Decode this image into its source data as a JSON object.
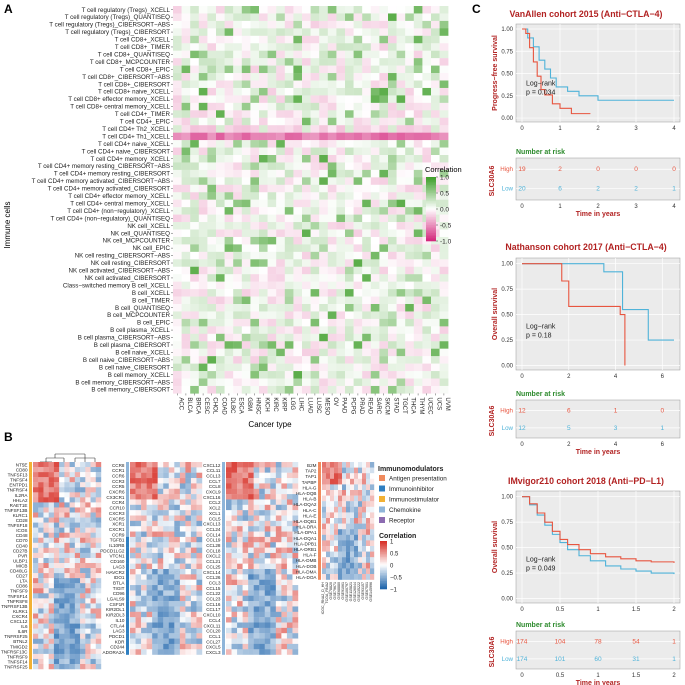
{
  "panels": {
    "A": "A",
    "B": "B",
    "C": "C"
  },
  "colors": {
    "high": "#e8553f",
    "low": "#4fb3d9",
    "title_red": "#b22222",
    "risk_green": "#2e8b2e",
    "risk_red": "#b22222",
    "heat_pos": "#3f9f2a",
    "heat_neg": "#d4287d"
  },
  "panel_a": {
    "ylabel": "Immune cells",
    "xlabel": "Cancer type",
    "legend_title": "Correlation",
    "legend_ticks": [
      "1.0",
      "0.5",
      "0.0",
      "-0.5",
      "-1.0"
    ],
    "cancers": [
      "ACC",
      "BLCA",
      "BRCA",
      "CESC",
      "CHOL",
      "COAD",
      "DLBC",
      "ESCA",
      "GBM",
      "HNSC",
      "KICH",
      "KIRC",
      "KIRP",
      "LGG",
      "LIHC",
      "LUAD",
      "LUSC",
      "MESO",
      "OV",
      "PAAD",
      "PCPG",
      "PRAD",
      "READ",
      "SARC",
      "SKCM",
      "STAD",
      "TGCT",
      "THCA",
      "THYM",
      "UCEC",
      "UCS",
      "UVM"
    ],
    "cells": [
      "T cell regulatory (Tregs)_XCELL",
      "T cell regulatory (Tregs)_QUANTISEQ",
      "T cell regulatory (Tregs)_CIBERSORT−ABS",
      "T cell regulatory (Tregs)_CIBERSORT",
      "T cell CD8+_XCELL",
      "T cell CD8+_TIMER",
      "T cell CD8+_QUANTISEQ",
      "T cell CD8+_MCPCOUNTER",
      "T cell CD8+_EPIC",
      "T cell CD8+_CIBERSORT−ABS",
      "T cell CD8+_CIBERSORT",
      "T cell CD8+ naive_XCELL",
      "T cell CD8+ effector memory_XCELL",
      "T cell CD8+ central memory_XCELL",
      "T cell CD4+_TIMER",
      "T cell CD4+_EPIC",
      "T cell CD4+ Th2_XCELL",
      "T cell CD4+ Th1_XCELL",
      "T cell CD4+ naive_XCELL",
      "T cell CD4+ naive_CIBERSORT",
      "T cell CD4+ memory_XCELL",
      "T cell CD4+ memory resting_CIBERSORT−ABS",
      "T cell CD4+ memory resting_CIBERSORT",
      "T cell CD4+ memory activated_CIBERSORT−ABS",
      "T cell CD4+ memory activated_CIBERSORT",
      "T cell CD4+ effector memory_XCELL",
      "T cell CD4+ central memory_XCELL",
      "T cell CD4+ (non−regulatory)_XCELL",
      "T cell CD4+ (non−regulatory)_QUANTISEQ",
      "NK cell_XCELL",
      "NK cell_QUANTISEQ",
      "NK cell_MCPCOUNTER",
      "NK cell_EPIC",
      "NK cell resting_CIBERSORT−ABS",
      "NK cell resting_CIBERSORT",
      "NK cell activated_CIBERSORT−ABS",
      "NK cell activated_CIBERSORT",
      "Class−switched memory B cell_XCELL",
      "B cell_XCELL",
      "B cell_TIMER",
      "B cell_QUANTISEQ",
      "B cell_MCPCOUNTER",
      "B cell_EPIC",
      "B cell plasma_XCELL",
      "B cell plasma_CIBERSORT−ABS",
      "B cell plasma_CIBERSORT",
      "B cell naive_XCELL",
      "B cell naive_CIBERSORT−ABS",
      "B cell naive_CIBERSORT",
      "B cell memory_XCELL",
      "B cell memory_CIBERSORT−ABS",
      "B cell memory_CIBERSORT"
    ]
  },
  "panel_b": {
    "legend_title": "Immunomodulators",
    "categories": [
      {
        "name": "Antigen presentation",
        "color": "#f08a5d"
      },
      {
        "name": "Immunoinhibitor",
        "color": "#2f7fc1"
      },
      {
        "name": "Immunostimulator",
        "color": "#f2b134"
      },
      {
        "name": "Chemokine",
        "color": "#8fb5d9"
      },
      {
        "name": "Receptor",
        "color": "#8c6bb1"
      }
    ],
    "corr_title": "Correlation",
    "corr_ticks": [
      "1",
      "0.5",
      "0",
      "−0.5",
      "−1"
    ],
    "genes_stim": [
      "NT5E",
      "CD80",
      "TNFSF13",
      "TNFSF4",
      "ENTPD1",
      "TNFRSF4",
      "IL2RA",
      "HHLA2",
      "RAET1E",
      "TNFSF13B",
      "KLRC1",
      "CD28",
      "TNFSF18",
      "ICOS",
      "CD48",
      "CD70",
      "CD40",
      "CD27B",
      "PVR",
      "ULBP1",
      "MICB",
      "CD40LG",
      "CD27",
      "LTA",
      "CD86",
      "TNFSF9",
      "TNFSF14",
      "TNFRSF8",
      "TNFRSF13B",
      "KLRK1",
      "CXCR4",
      "CXCL12",
      "IL6",
      "IL6R",
      "TNFRSF25",
      "BTNL2",
      "TMIGD2",
      "TNFRSF13C",
      "TNFRSF9",
      "TNFSF14",
      "TNFRSF25"
    ],
    "genes_mid1": [
      "CCR8",
      "CCR1",
      "CCR6",
      "CCR3",
      "CCR5",
      "CXCR6",
      "CX3CR1",
      "CCR4",
      "CCR10",
      "CXCR3",
      "CXCR5",
      "XCR1",
      "CXCR1",
      "CCR9",
      "TGFB1",
      "IL10RB",
      "PDCD1LG2",
      "VTCN1",
      "CD160",
      "LAG3",
      "HAVCR2",
      "IDO1",
      "BTLA",
      "TIGIT",
      "CD96",
      "LGALS9",
      "CSF1R",
      "KIR2DL1",
      "KIR2DL3",
      "IL10",
      "CTLA4",
      "LAG3",
      "PDCD1",
      "KDR",
      "CD244",
      "ADORA2A"
    ],
    "genes_mid2": [
      "CXCL12",
      "CCL11",
      "CCL13",
      "CCL7",
      "CCL8",
      "CXCL9",
      "CXCL16",
      "CCL2",
      "XCL2",
      "XCL1",
      "CCL5",
      "CXCL13",
      "CCL24",
      "CCL14",
      "CCL19",
      "CCL28",
      "CCL18",
      "CXCL2",
      "CCL21",
      "CCL25",
      "CXCL14",
      "CCL26",
      "CCL3",
      "CCL15",
      "CCL22",
      "CCL23",
      "CCL16",
      "CCL17",
      "CXCL10",
      "CCL4",
      "CXCL11",
      "CCL20",
      "CCL1",
      "CCL27",
      "CXCL5",
      "CXCL3"
    ],
    "genes_mhc": [
      "B2M",
      "TAP2",
      "TAP1",
      "TAPBP",
      "HLA-G",
      "HLA-DQB",
      "HLA-B",
      "HLA-DQA2",
      "HLA-C",
      "HLA-E",
      "HLA-DQB1",
      "HLA-DRA",
      "HLA-DPA1",
      "HLA-DQA1",
      "HLA-DPB1",
      "HLA-DRB1",
      "HLA-F",
      "HLA-DMB",
      "HLA-DOB",
      "HLA-DMA",
      "HLA-DOA"
    ],
    "col_labels": [
      "ICGC_RNA2_D_HH",
      "TCGA_RNA2",
      "GSE78820",
      "GSE79671",
      "GSE68880",
      "GSE91061",
      "GSE100797",
      "GSE115821",
      "GSE126044",
      "GSE135222",
      "GSE93157",
      "GSE67501",
      "GSE145996"
    ]
  },
  "panel_c": {
    "plots": [
      {
        "title": "VanAllen cohort 2015 (Anti−CTLA−4)",
        "ylabel": "Progress−free survival",
        "test_label": "Log−rank",
        "p_label": "p = 0.034",
        "xlim": [
          0,
          4
        ],
        "xticks": [
          "0",
          "1",
          "2",
          "3",
          "4"
        ],
        "yticks": [
          "0.00",
          "0.25",
          "0.50",
          "0.75",
          "1.00"
        ],
        "high_curve": [
          [
            0,
            1.0
          ],
          [
            0.1,
            0.95
          ],
          [
            0.2,
            0.79
          ],
          [
            0.3,
            0.63
          ],
          [
            0.4,
            0.47
          ],
          [
            0.5,
            0.32
          ],
          [
            0.6,
            0.26
          ],
          [
            0.8,
            0.16
          ],
          [
            1.0,
            0.11
          ],
          [
            1.3,
            0.05
          ],
          [
            1.8,
            0.05
          ]
        ],
        "low_curve": [
          [
            0,
            1.0
          ],
          [
            0.15,
            0.9
          ],
          [
            0.3,
            0.8
          ],
          [
            0.45,
            0.65
          ],
          [
            0.6,
            0.55
          ],
          [
            0.75,
            0.45
          ],
          [
            0.9,
            0.35
          ],
          [
            1.2,
            0.3
          ],
          [
            1.5,
            0.25
          ],
          [
            2.0,
            0.2
          ],
          [
            4.0,
            0.2
          ]
        ],
        "risk_title": "Number at risk",
        "risk_ylabel": "SLC30A6",
        "high_label": "High",
        "low_label": "Low",
        "risk_high": [
          "19",
          "2",
          "0",
          "0",
          "0"
        ],
        "risk_low": [
          "20",
          "6",
          "2",
          "2",
          "1"
        ],
        "risk_ticks": [
          "0",
          "1",
          "2",
          "3",
          "4"
        ],
        "xlabel": "Time in years"
      },
      {
        "title": "Nathanson cohort 2017 (Anti−CTLA−4)",
        "ylabel": "Overall survival",
        "test_label": "Log−rank",
        "p_label": "p = 0.18",
        "xlim": [
          0,
          6.5
        ],
        "xticks": [
          "0",
          "2",
          "4",
          "6"
        ],
        "yticks": [
          "0.00",
          "0.25",
          "0.50",
          "0.75",
          "1.00"
        ],
        "high_curve": [
          [
            0,
            1.0
          ],
          [
            1.7,
            1.0
          ],
          [
            1.7,
            0.83
          ],
          [
            2.0,
            0.83
          ],
          [
            2.0,
            0.58
          ],
          [
            4.2,
            0.58
          ],
          [
            4.2,
            0.5
          ],
          [
            4.4,
            0.5
          ],
          [
            4.4,
            0.0
          ]
        ],
        "low_curve": [
          [
            0,
            1.0
          ],
          [
            3.5,
            1.0
          ],
          [
            3.5,
            0.92
          ],
          [
            4.3,
            0.92
          ],
          [
            4.3,
            0.55
          ],
          [
            5.4,
            0.55
          ],
          [
            5.4,
            0.25
          ],
          [
            6.5,
            0.25
          ]
        ],
        "risk_title": "Number at risk",
        "risk_ylabel": "SLC30A6",
        "high_label": "High",
        "low_label": "Low",
        "risk_high": [
          "12",
          "6",
          "1",
          "0"
        ],
        "risk_low": [
          "12",
          "5",
          "3",
          "1"
        ],
        "risk_ticks": [
          "0",
          "2",
          "4",
          "6"
        ],
        "xlabel": "Time in years"
      },
      {
        "title": "IMvigor210 cohort 2018 (Anti−PD−L1)",
        "ylabel": "Overall survival",
        "test_label": "Log−rank",
        "p_label": "p = 0.049",
        "xlim": [
          0,
          2
        ],
        "xticks": [
          "0",
          "0.5",
          "1",
          "1.5",
          "2"
        ],
        "yticks": [
          "0.00",
          "0.25",
          "0.50",
          "0.75",
          "1.00"
        ],
        "high_curve": [
          [
            0,
            1.0
          ],
          [
            0.1,
            0.93
          ],
          [
            0.2,
            0.84
          ],
          [
            0.3,
            0.75
          ],
          [
            0.4,
            0.66
          ],
          [
            0.5,
            0.58
          ],
          [
            0.6,
            0.53
          ],
          [
            0.75,
            0.48
          ],
          [
            0.9,
            0.44
          ],
          [
            1.1,
            0.41
          ],
          [
            1.3,
            0.39
          ],
          [
            1.5,
            0.37
          ],
          [
            1.7,
            0.36
          ],
          [
            2.0,
            0.35
          ]
        ],
        "low_curve": [
          [
            0,
            1.0
          ],
          [
            0.1,
            0.92
          ],
          [
            0.2,
            0.82
          ],
          [
            0.3,
            0.72
          ],
          [
            0.4,
            0.63
          ],
          [
            0.5,
            0.55
          ],
          [
            0.6,
            0.48
          ],
          [
            0.75,
            0.42
          ],
          [
            0.9,
            0.37
          ],
          [
            1.1,
            0.32
          ],
          [
            1.3,
            0.29
          ],
          [
            1.5,
            0.27
          ],
          [
            1.7,
            0.25
          ],
          [
            2.0,
            0.24
          ]
        ],
        "risk_title": "Number at risk",
        "risk_ylabel": "SLC30A6",
        "high_label": "High",
        "low_label": "Low",
        "risk_high": [
          "174",
          "104",
          "78",
          "54",
          "1"
        ],
        "risk_low": [
          "174",
          "101",
          "60",
          "31",
          "1"
        ],
        "risk_ticks": [
          "0",
          "0.5",
          "1",
          "1.5",
          "2"
        ],
        "xlabel": "Time in years"
      }
    ]
  },
  "chart_data": [
    {
      "type": "heatmap",
      "xlabel": "Cancer type",
      "ylabel": "Immune cells",
      "legend": "Correlation",
      "zlim": [
        -1,
        1
      ],
      "note_rows": "rows follow panel_a.cells, columns follow panel_a.cancers"
    },
    {
      "type": "heatmap",
      "legend": "Correlation",
      "zlim": [
        -1,
        1
      ]
    },
    {
      "type": "line",
      "title": "VanAllen cohort 2015 (Anti−CTLA−4)",
      "xlabel": "Time in years",
      "ylabel": "Progress−free survival",
      "ylim": [
        0,
        1
      ],
      "series": [
        {
          "name": "High"
        },
        {
          "name": "Low"
        }
      ]
    },
    {
      "type": "line",
      "title": "Nathanson cohort 2017 (Anti−CTLA−4)",
      "xlabel": "Time in years",
      "ylabel": "Overall survival",
      "ylim": [
        0,
        1
      ],
      "series": [
        {
          "name": "High"
        },
        {
          "name": "Low"
        }
      ]
    },
    {
      "type": "line",
      "title": "IMvigor210 cohort 2018 (Anti−PD−L1)",
      "xlabel": "Time in years",
      "ylabel": "Overall survival",
      "ylim": [
        0,
        1
      ],
      "series": [
        {
          "name": "High"
        },
        {
          "name": "Low"
        }
      ]
    }
  ]
}
